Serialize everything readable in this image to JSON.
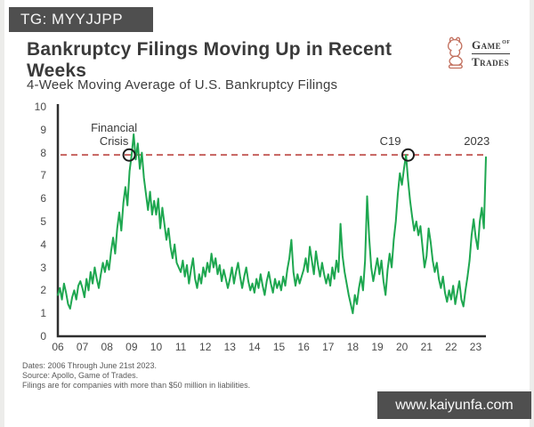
{
  "overlays": {
    "tg_badge": "TG: MYYJJPP",
    "watermark": "www.kaiyunfa.com"
  },
  "header": {
    "title": "Bankruptcy Filings Moving Up in Recent Weeks",
    "logo": {
      "word1": "Game",
      "of": "of",
      "word2": "Trades"
    }
  },
  "subtitle": "4-Week Moving Average of U.S. Bankruptcy Filings",
  "footnotes": [
    "Dates: 2006 Through June 21st 2023.",
    "Source: Apollo, Game of Trades.",
    "Filings are for companies with more than $50 million in liabilities."
  ],
  "chart_data": {
    "type": "line",
    "title": "4-Week Moving Average of U.S. Bankruptcy Filings",
    "xlabel": "",
    "ylabel": "",
    "ylim": [
      0,
      10
    ],
    "yticks": [
      0,
      1,
      2,
      3,
      4,
      5,
      6,
      7,
      8,
      9,
      10
    ],
    "grid": false,
    "x_start_year": 2006,
    "points_per_year": 12,
    "x_tick_years": [
      2006,
      2007,
      2008,
      2009,
      2010,
      2011,
      2012,
      2013,
      2014,
      2015,
      2016,
      2017,
      2018,
      2019,
      2020,
      2021,
      2022,
      2023
    ],
    "x_tick_labels": [
      "06",
      "07",
      "08",
      "09",
      "10",
      "11",
      "12",
      "13",
      "14",
      "15",
      "16",
      "17",
      "18",
      "19",
      "20",
      "21",
      "22",
      "23"
    ],
    "series": [
      {
        "name": "4-Week Moving Average of U.S. Bankruptcy Filings",
        "color": "#1ea750",
        "values": [
          1.8,
          2.1,
          1.6,
          2.3,
          1.9,
          1.4,
          1.2,
          1.7,
          2.0,
          1.6,
          2.2,
          2.4,
          2.1,
          1.7,
          2.5,
          2.0,
          2.8,
          2.3,
          3.0,
          2.5,
          2.1,
          2.7,
          3.2,
          2.8,
          3.3,
          2.9,
          3.7,
          4.3,
          3.6,
          4.7,
          5.4,
          4.6,
          5.8,
          6.5,
          5.7,
          7.2,
          7.9,
          8.8,
          7.7,
          8.4,
          7.3,
          8.0,
          6.9,
          6.2,
          5.5,
          6.3,
          5.3,
          5.9,
          5.3,
          6.0,
          4.7,
          5.6,
          4.9,
          4.2,
          4.7,
          3.9,
          3.4,
          4.0,
          3.2,
          3.0,
          2.8,
          3.3,
          2.6,
          3.1,
          2.3,
          2.9,
          3.4,
          2.5,
          2.1,
          2.7,
          2.3,
          3.0,
          2.6,
          3.2,
          2.8,
          3.6,
          3.0,
          3.4,
          2.7,
          3.1,
          2.4,
          2.9,
          2.5,
          2.1,
          2.5,
          3.0,
          2.3,
          2.8,
          3.2,
          2.6,
          2.1,
          2.6,
          3.0,
          2.4,
          2.0,
          2.3,
          1.9,
          2.5,
          2.1,
          2.7,
          2.2,
          1.8,
          2.4,
          2.8,
          2.3,
          1.9,
          2.5,
          2.1,
          2.4,
          2.0,
          2.6,
          2.2,
          2.9,
          3.4,
          4.2,
          2.8,
          2.2,
          2.7,
          2.3,
          2.6,
          2.9,
          3.4,
          2.8,
          3.9,
          3.3,
          2.7,
          3.7,
          3.1,
          2.6,
          3.2,
          2.7,
          2.3,
          2.7,
          2.2,
          3.0,
          2.5,
          3.3,
          2.8,
          4.9,
          3.5,
          2.8,
          2.3,
          1.8,
          1.4,
          1.0,
          1.8,
          1.4,
          2.1,
          2.6,
          2.0,
          3.3,
          6.1,
          4.3,
          3.0,
          2.4,
          2.9,
          3.4,
          2.7,
          3.3,
          2.4,
          1.8,
          2.9,
          3.6,
          3.0,
          4.2,
          5.0,
          6.2,
          7.1,
          6.6,
          7.3,
          7.9,
          6.8,
          5.9,
          5.2,
          4.6,
          5.0,
          4.4,
          4.8,
          3.9,
          3.0,
          3.5,
          4.7,
          4.1,
          3.3,
          2.8,
          3.2,
          2.5,
          2.1,
          2.6,
          1.9,
          1.5,
          2.0,
          1.6,
          2.2,
          1.4,
          1.9,
          2.4,
          1.6,
          1.3,
          2.0,
          2.6,
          3.3,
          4.4,
          5.1,
          4.3,
          3.8,
          5.0,
          5.6,
          4.7,
          7.8
        ]
      }
    ],
    "reference_line": {
      "y": 7.9,
      "color": "#c0504d",
      "style": "dashed"
    },
    "annotations": [
      {
        "lines": [
          "Financial",
          "Crisis"
        ],
        "x": 2008.9,
        "y": 7.9,
        "marker": "circle"
      },
      {
        "lines": [
          "C19"
        ],
        "x": 2020.25,
        "y": 7.9,
        "marker": "circle"
      },
      {
        "lines": [
          "2023"
        ],
        "x": 2023.3,
        "y": 7.9,
        "marker": "none"
      }
    ]
  }
}
